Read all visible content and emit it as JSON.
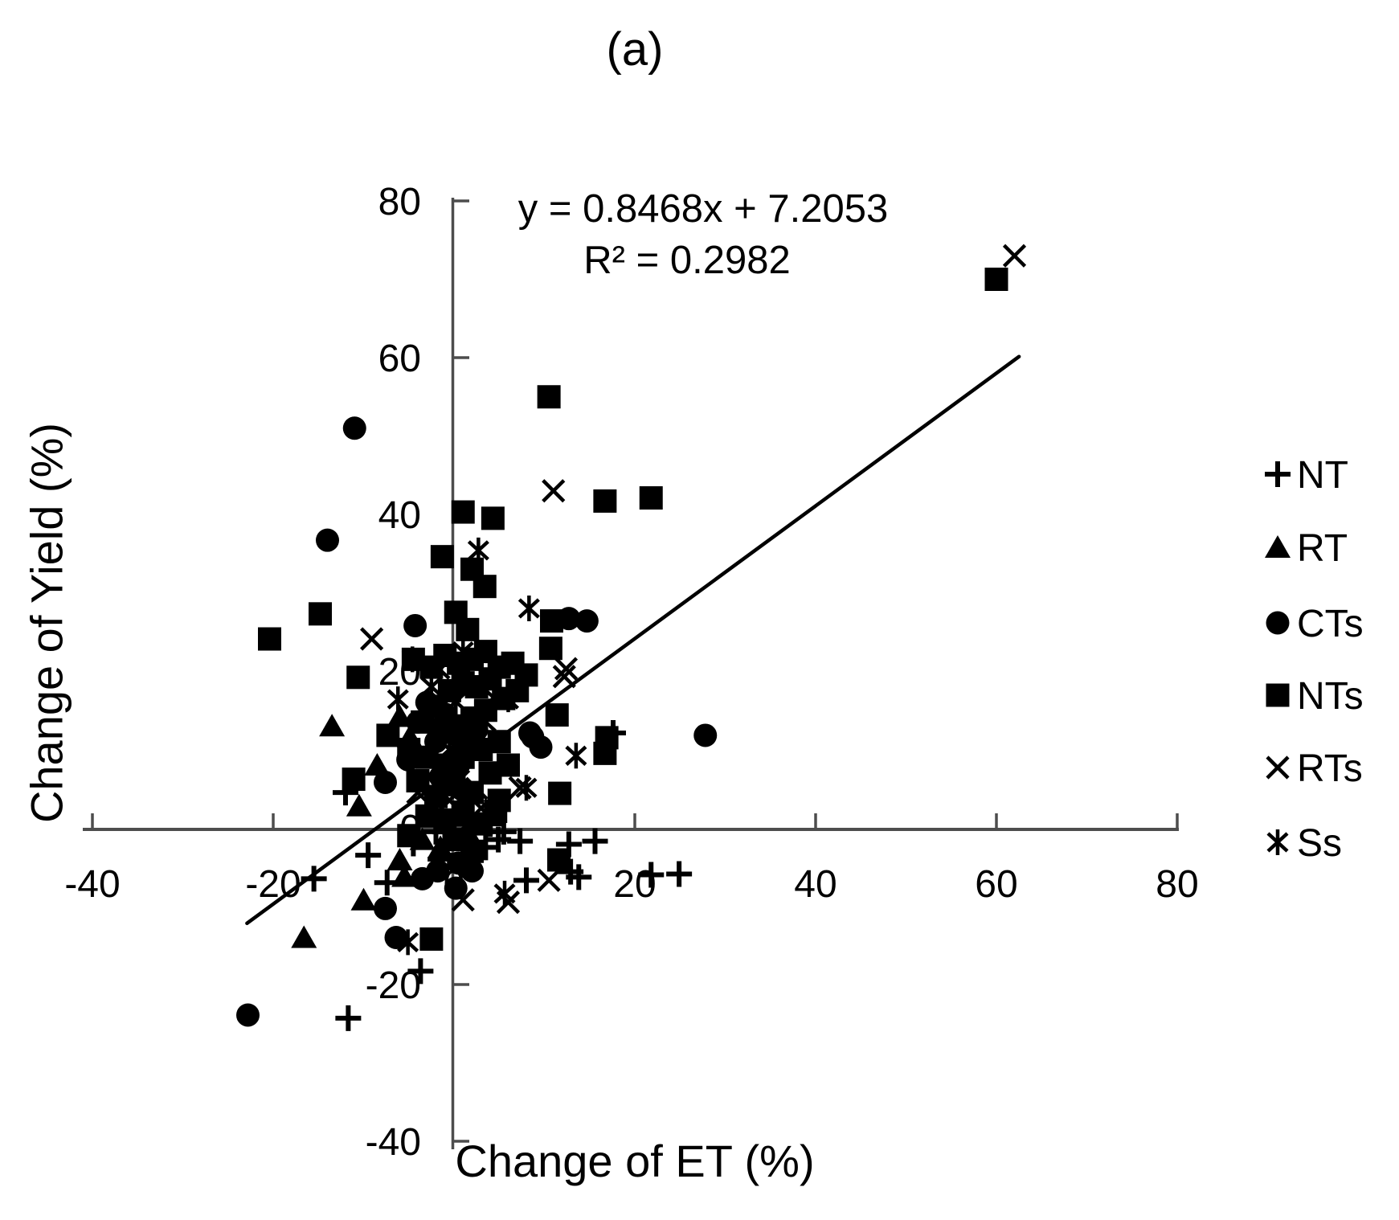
{
  "chart_data": {
    "type": "scatter",
    "title": "(a)",
    "xlabel": "Change of ET (%)",
    "ylabel": "Change of Yield (%)",
    "xlim": [
      -40,
      80
    ],
    "ylim": [
      -40,
      80
    ],
    "xticks": [
      -40,
      -20,
      0,
      20,
      40,
      60,
      80
    ],
    "yticks": [
      -40,
      -20,
      0,
      20,
      40,
      60,
      80
    ],
    "grid": false,
    "legend_position": "right",
    "annotation": {
      "equation": "y = 0.8468x + 7.2053",
      "r_squared": "R² = 0.2982"
    },
    "trendline": {
      "slope": 0.8468,
      "intercept": 7.2053,
      "x_start": -22.9,
      "x_end": 62.5
    },
    "series": [
      {
        "name": "NT",
        "marker": "plus",
        "points": [
          [
            -11.7,
            -24.3
          ],
          [
            -3.7,
            -18.3
          ],
          [
            -7.4,
            -7
          ],
          [
            -15.5,
            -6.5
          ],
          [
            -9.5,
            -3.5
          ],
          [
            -12,
            4.5
          ],
          [
            4.9,
            -1.5
          ],
          [
            7.3,
            -1.7
          ],
          [
            12.7,
            -2.1
          ],
          [
            15.6,
            -1.7
          ],
          [
            12.9,
            -5.6
          ],
          [
            13.8,
            -6.3
          ],
          [
            8,
            -6.7
          ],
          [
            21.8,
            -6
          ],
          [
            24.9,
            -5.9
          ],
          [
            17.6,
            12.1
          ],
          [
            0,
            0.5
          ],
          [
            2,
            1.5
          ],
          [
            -2,
            -0.5
          ],
          [
            4,
            0.5
          ],
          [
            -4.5,
            -2
          ],
          [
            1,
            -3.5
          ],
          [
            3.5,
            -2.5
          ],
          [
            -1.5,
            -4
          ],
          [
            5.5,
            -0.5
          ]
        ]
      },
      {
        "name": "RT",
        "marker": "triangle",
        "points": [
          [
            -16.6,
            -14
          ],
          [
            -10,
            -9.2
          ],
          [
            -10.5,
            2.8
          ],
          [
            -4.9,
            11.6
          ],
          [
            -6,
            14.2
          ],
          [
            -13.5,
            13
          ],
          [
            -6,
            -4.1
          ],
          [
            -5.5,
            -6.2
          ],
          [
            -8.5,
            8
          ],
          [
            -2.5,
            2.5
          ],
          [
            -1,
            0.5
          ],
          [
            0.5,
            1.5
          ],
          [
            -3.5,
            -1.5
          ],
          [
            -1.5,
            -2.5
          ],
          [
            1.5,
            -0.5
          ]
        ]
      },
      {
        "name": "CTs",
        "marker": "circle",
        "points": [
          [
            -11,
            51
          ],
          [
            -14,
            36.7
          ],
          [
            -4.3,
            25.8
          ],
          [
            12.7,
            26.7
          ],
          [
            14.7,
            26.4
          ],
          [
            27.8,
            11.8
          ],
          [
            8.4,
            12.1
          ],
          [
            8.7,
            11.6
          ],
          [
            9.6,
            10.3
          ],
          [
            -5.1,
            8.7
          ],
          [
            -7.6,
            5.8
          ],
          [
            -7.6,
            -10.3
          ],
          [
            -6.4,
            -14
          ],
          [
            0.2,
            -7.7
          ],
          [
            -22.8,
            -23.9
          ],
          [
            -1.8,
            -5.5
          ],
          [
            0.5,
            -4.5
          ],
          [
            2,
            -5.5
          ],
          [
            -3.5,
            -6.5
          ],
          [
            -2,
            11
          ],
          [
            0,
            12
          ],
          [
            1.5,
            10.5
          ],
          [
            -1,
            14.5
          ],
          [
            -3,
            16
          ],
          [
            2.5,
            12.5
          ],
          [
            0.5,
            8
          ],
          [
            -4,
            13.5
          ],
          [
            -1.5,
            6.5
          ],
          [
            1,
            4.8
          ]
        ]
      },
      {
        "name": "NTs",
        "marker": "square",
        "points": [
          [
            60,
            70
          ],
          [
            10.5,
            55
          ],
          [
            21.8,
            42.1
          ],
          [
            16.7,
            41.7
          ],
          [
            1,
            40.3
          ],
          [
            4.3,
            39.5
          ],
          [
            -1.3,
            34.6
          ],
          [
            2,
            33
          ],
          [
            3.4,
            30.8
          ],
          [
            -20.4,
            24.1
          ],
          [
            -14.8,
            27.3
          ],
          [
            0.2,
            27.5
          ],
          [
            1.5,
            25.3
          ],
          [
            10.8,
            26.4
          ],
          [
            10.7,
            22.9
          ],
          [
            -10.6,
            19.2
          ],
          [
            8,
            19.5
          ],
          [
            11.4,
            14.4
          ],
          [
            16.7,
            9.5
          ],
          [
            16.9,
            11.5
          ],
          [
            11.7,
            4.4
          ],
          [
            11.6,
            -4.1
          ],
          [
            4.6,
            2.1
          ],
          [
            -2.5,
            -14.2
          ],
          [
            -7.3,
            11.8
          ],
          [
            -11.1,
            6.2
          ],
          [
            -4.5,
            21.5
          ],
          [
            -2.5,
            20.5
          ],
          [
            -1,
            22
          ],
          [
            0.5,
            21
          ],
          [
            2,
            21.5
          ],
          [
            3.5,
            22.5
          ],
          [
            5,
            20.5
          ],
          [
            6.5,
            21
          ],
          [
            4,
            19
          ],
          [
            2.5,
            18
          ],
          [
            1,
            18.5
          ],
          [
            -0.5,
            17.5
          ],
          [
            -2,
            15.5
          ],
          [
            -3.5,
            13.5
          ],
          [
            -1.5,
            12.5
          ],
          [
            0.5,
            13
          ],
          [
            2,
            14
          ],
          [
            3.5,
            15
          ],
          [
            5.5,
            16.5
          ],
          [
            7,
            17.5
          ],
          [
            -5,
            10
          ],
          [
            -3,
            9
          ],
          [
            -1,
            8
          ],
          [
            1,
            9
          ],
          [
            3,
            10
          ],
          [
            5,
            11
          ],
          [
            0,
            5.5
          ],
          [
            2,
            4.5
          ],
          [
            -2,
            4
          ],
          [
            -4,
            6
          ],
          [
            4,
            7
          ],
          [
            6,
            8
          ],
          [
            1,
            2
          ],
          [
            -1,
            1
          ],
          [
            3,
            0.5
          ],
          [
            -3,
            1.5
          ],
          [
            0,
            -1.5
          ],
          [
            2,
            -3
          ],
          [
            -5,
            -1
          ],
          [
            5,
            3.5
          ]
        ]
      },
      {
        "name": "RTs",
        "marker": "x",
        "points": [
          [
            62,
            73
          ],
          [
            11,
            43
          ],
          [
            -9.1,
            24.1
          ],
          [
            12.4,
            20.3
          ],
          [
            12.2,
            19.3
          ],
          [
            7.3,
            5.1
          ],
          [
            1,
            -9.2
          ],
          [
            6,
            -9.5
          ],
          [
            10.5,
            -6.7
          ],
          [
            -2,
            7.5
          ],
          [
            0.5,
            6
          ],
          [
            2.5,
            5
          ],
          [
            -0.5,
            3.5
          ],
          [
            3,
            2.5
          ],
          [
            -4,
            4.5
          ],
          [
            1.5,
            0.5
          ]
        ]
      },
      {
        "name": "Ss",
        "marker": "asterisk",
        "points": [
          [
            2.7,
            35.4
          ],
          [
            8.3,
            28
          ],
          [
            -4.6,
            21.5
          ],
          [
            -1.6,
            20.2
          ],
          [
            -6.2,
            16.4
          ],
          [
            0.2,
            16.1
          ],
          [
            4.4,
            16.6
          ],
          [
            6,
            16.4
          ],
          [
            13.5,
            9.2
          ],
          [
            8,
            5.1
          ],
          [
            5.6,
            -8.4
          ],
          [
            -5.1,
            -14.6
          ],
          [
            1,
            22.5
          ],
          [
            -2.5,
            18
          ],
          [
            2,
            12
          ],
          [
            -0.5,
            10
          ],
          [
            3.5,
            13.5
          ]
        ]
      }
    ],
    "colors": {
      "marker": "#000000",
      "axis": "#4d4d4d",
      "text": "#000000",
      "background": "#ffffff"
    }
  }
}
